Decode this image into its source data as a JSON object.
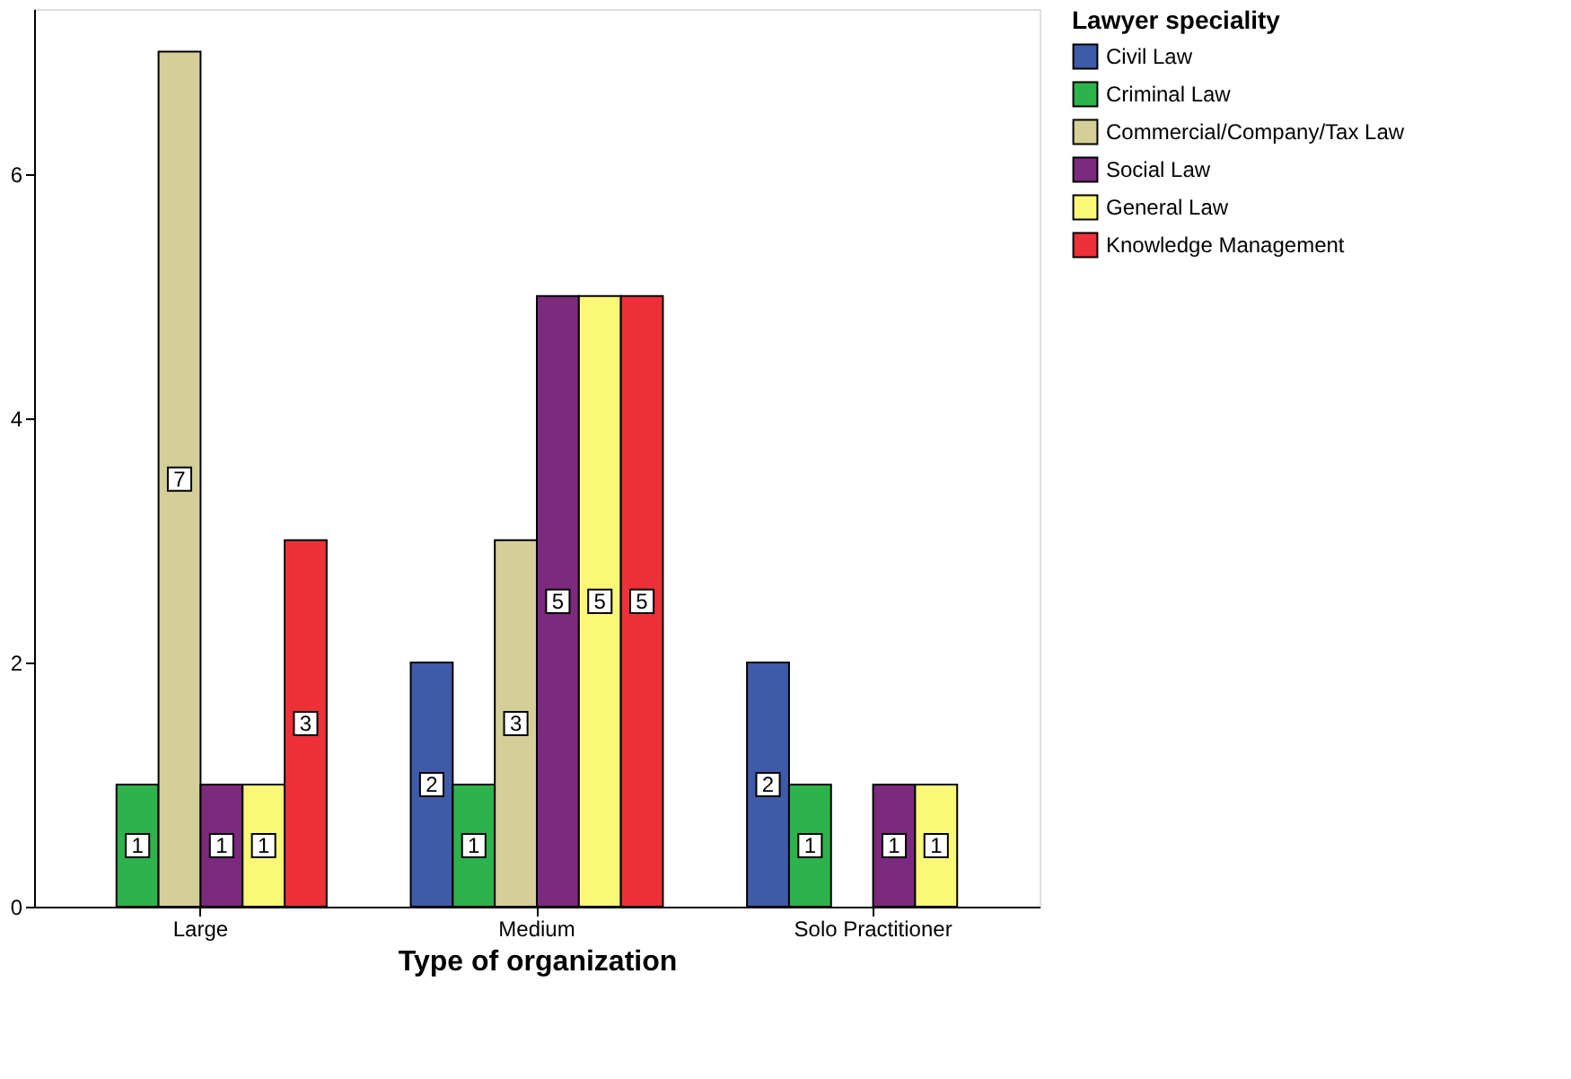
{
  "chart_data": {
    "type": "bar",
    "xlabel": "Type of organization",
    "legend_title": "Lawyer speciality",
    "categories": [
      "Large",
      "Medium",
      "Solo Practitioner"
    ],
    "series": [
      {
        "name": "Civil Law",
        "color": "#3e5aa8",
        "values": [
          null,
          2,
          2
        ]
      },
      {
        "name": "Criminal Law",
        "color": "#2db34b",
        "values": [
          1,
          1,
          1
        ]
      },
      {
        "name": "Commercial/Company/Tax Law",
        "color": "#d4cf98",
        "values": [
          7,
          3,
          null
        ]
      },
      {
        "name": "Social Law",
        "color": "#7b2a7d",
        "values": [
          1,
          5,
          1
        ]
      },
      {
        "name": "General Law",
        "color": "#fbf877",
        "values": [
          1,
          5,
          1
        ]
      },
      {
        "name": "Knowledge Management",
        "color": "#ee3039",
        "values": [
          3,
          5,
          null
        ]
      }
    ],
    "ylim": [
      0,
      7.35
    ],
    "yticks": [
      0,
      2,
      4,
      6
    ],
    "grid": false,
    "legend": "top right",
    "data_labels": true
  }
}
